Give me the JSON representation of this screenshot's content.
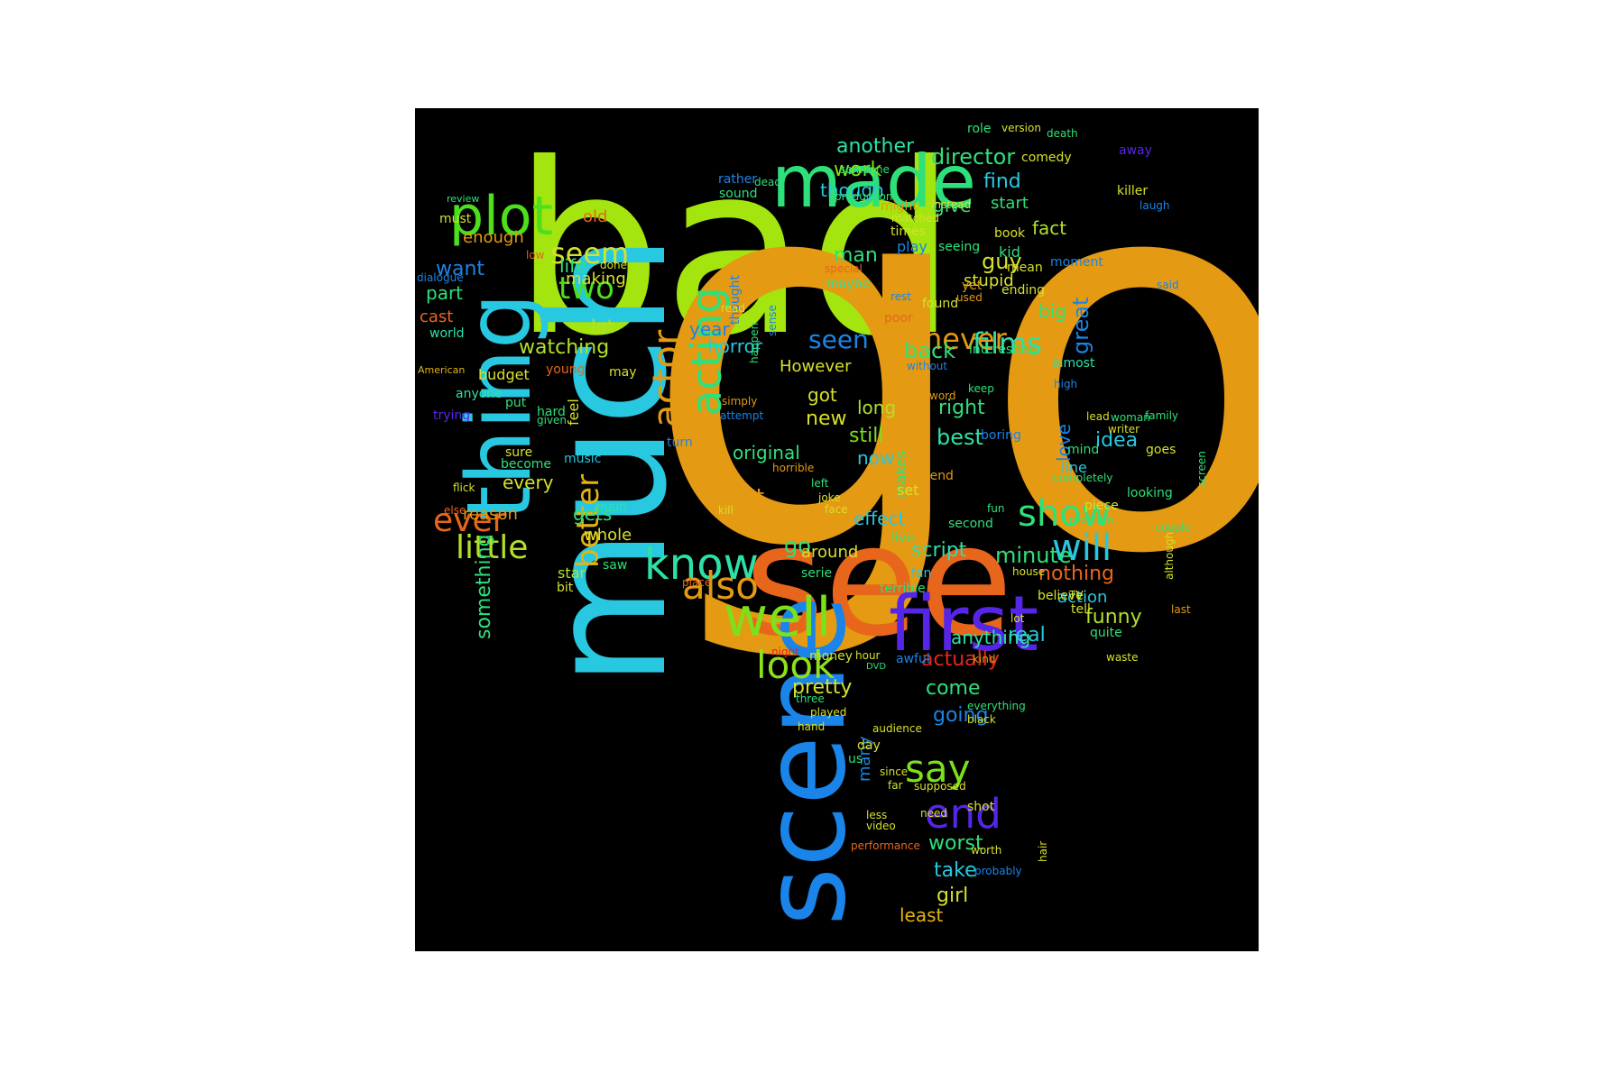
{
  "palette": {
    "background": "#000000",
    "page": "#ffffff"
  },
  "words": [
    {
      "text": "bad",
      "color": "#a4e40f"
    },
    {
      "text": "good",
      "color": "#e49a12"
    },
    {
      "text": "see",
      "color": "#e8661c"
    },
    {
      "text": "scene",
      "color": "#1a84e8"
    },
    {
      "text": "first",
      "color": "#5626e8"
    },
    {
      "text": "made",
      "color": "#2ee07a"
    },
    {
      "text": "much",
      "color": "#27c8e0"
    },
    {
      "text": "thing",
      "color": "#27c8e0"
    },
    {
      "text": "plot",
      "color": "#4ce01c"
    },
    {
      "text": "well",
      "color": "#7ce01a"
    },
    {
      "text": "know",
      "color": "#2ee0a8"
    },
    {
      "text": "also",
      "color": "#e49a12"
    },
    {
      "text": "look",
      "color": "#8ce01c"
    },
    {
      "text": "show",
      "color": "#2ee07a"
    },
    {
      "text": "will",
      "color": "#27c8e0"
    },
    {
      "text": "end",
      "color": "#5626e8"
    },
    {
      "text": "say",
      "color": "#7ce01a"
    },
    {
      "text": "acting",
      "color": "#2ee07a"
    },
    {
      "text": "actor",
      "color": "#e49a12"
    },
    {
      "text": "seem",
      "color": "#d6e02a"
    },
    {
      "text": "two",
      "color": "#4ce01c"
    },
    {
      "text": "ever",
      "color": "#e8661c"
    },
    {
      "text": "little",
      "color": "#b2e02a"
    },
    {
      "text": "better",
      "color": "#e4b412"
    },
    {
      "text": "films",
      "color": "#2ee0a8"
    },
    {
      "text": "never",
      "color": "#e49a12"
    },
    {
      "text": "seen",
      "color": "#1a84e8"
    },
    {
      "text": "director",
      "color": "#2ee07a"
    },
    {
      "text": "another",
      "color": "#2ee0a8"
    },
    {
      "text": "though",
      "color": "#27c8e0"
    },
    {
      "text": "work",
      "color": "#7ce01a"
    },
    {
      "text": "find",
      "color": "#27c8e0"
    },
    {
      "text": "give",
      "color": "#2ee07a"
    },
    {
      "text": "guy",
      "color": "#d6e02a"
    },
    {
      "text": "fact",
      "color": "#b2e02a"
    },
    {
      "text": "great",
      "color": "#1a84e8"
    },
    {
      "text": "big",
      "color": "#2ee07a"
    },
    {
      "text": "stupid",
      "color": "#d6e02a"
    },
    {
      "text": "man",
      "color": "#2ee07a"
    },
    {
      "text": "back",
      "color": "#2ee07a"
    },
    {
      "text": "horror",
      "color": "#27c8e0"
    },
    {
      "text": "year",
      "color": "#1a84e8"
    },
    {
      "text": "However",
      "color": "#d6e02a"
    },
    {
      "text": "long",
      "color": "#b2e02a"
    },
    {
      "text": "still",
      "color": "#7ce01a"
    },
    {
      "text": "now",
      "color": "#27c8e0"
    },
    {
      "text": "best",
      "color": "#2ee0a8"
    },
    {
      "text": "right",
      "color": "#2ee07a"
    },
    {
      "text": "love",
      "color": "#1a84e8"
    },
    {
      "text": "idea",
      "color": "#27c8e0"
    },
    {
      "text": "new",
      "color": "#d6e02a"
    },
    {
      "text": "got",
      "color": "#d6e02a"
    },
    {
      "text": "original",
      "color": "#2ee07a"
    },
    {
      "text": "point",
      "color": "#e49a12"
    },
    {
      "text": "effect",
      "color": "#27c8e0"
    },
    {
      "text": "script",
      "color": "#2ee0a8"
    },
    {
      "text": "minute",
      "color": "#2ee07a"
    },
    {
      "text": "nothing",
      "color": "#e8661c"
    },
    {
      "text": "action",
      "color": "#27c8e0"
    },
    {
      "text": "funny",
      "color": "#b2e02a"
    },
    {
      "text": "real",
      "color": "#27c8e0"
    },
    {
      "text": "anything",
      "color": "#2ee0a8"
    },
    {
      "text": "go",
      "color": "#2ee07a"
    },
    {
      "text": "around",
      "color": "#d6e02a"
    },
    {
      "text": "pretty",
      "color": "#d6e02a"
    },
    {
      "text": "actually",
      "color": "#e8261c"
    },
    {
      "text": "come",
      "color": "#2ee07a"
    },
    {
      "text": "going",
      "color": "#1a84e8"
    },
    {
      "text": "many",
      "color": "#1a84e8"
    },
    {
      "text": "worst",
      "color": "#2ee07a"
    },
    {
      "text": "take",
      "color": "#27c8e0"
    },
    {
      "text": "girl",
      "color": "#d6e02a"
    },
    {
      "text": "least",
      "color": "#e4b412"
    },
    {
      "text": "something",
      "color": "#2ee07a"
    },
    {
      "text": "watching",
      "color": "#b2e02a"
    },
    {
      "text": "want",
      "color": "#1a84e8"
    },
    {
      "text": "part",
      "color": "#2ee07a"
    },
    {
      "text": "old",
      "color": "#e8661c"
    },
    {
      "text": "life",
      "color": "#2ee07a"
    },
    {
      "text": "making",
      "color": "#d6e02a"
    },
    {
      "text": "lot",
      "color": "#b2e02a"
    },
    {
      "text": "every",
      "color": "#d6e02a"
    },
    {
      "text": "gets",
      "color": "#2ee07a"
    },
    {
      "text": "whole",
      "color": "#d6e02a"
    },
    {
      "text": "reason",
      "color": "#e49a12"
    },
    {
      "text": "enough",
      "color": "#e49a12"
    },
    {
      "text": "cast",
      "color": "#e8661c"
    },
    {
      "text": "budget",
      "color": "#d6e02a"
    },
    {
      "text": "star",
      "color": "#b2e02a"
    },
    {
      "text": "music",
      "color": "#27c8e0"
    },
    {
      "text": "feel",
      "color": "#d6e02a"
    },
    {
      "text": "world",
      "color": "#2ee0a8"
    },
    {
      "text": "trying",
      "color": "#5626e8"
    },
    {
      "text": "anyone",
      "color": "#2ee0a8"
    },
    {
      "text": "young",
      "color": "#e8661c"
    },
    {
      "text": "hard",
      "color": "#2ee07a"
    },
    {
      "text": "sure",
      "color": "#d6e02a"
    },
    {
      "text": "become",
      "color": "#2ee07a"
    },
    {
      "text": "done",
      "color": "#d6e02a"
    },
    {
      "text": "main",
      "color": "#2ee0a8"
    },
    {
      "text": "saw",
      "color": "#2ee07a"
    },
    {
      "text": "bit",
      "color": "#d6e02a"
    },
    {
      "text": "must",
      "color": "#d6e02a"
    },
    {
      "text": "low",
      "color": "#e8661c"
    },
    {
      "text": "dialogue",
      "color": "#1a84e8"
    },
    {
      "text": "put",
      "color": "#2ee07a"
    },
    {
      "text": "may",
      "color": "#d6e02a"
    },
    {
      "text": "review",
      "color": "#2ee07a"
    },
    {
      "text": "flick",
      "color": "#d6e02a"
    },
    {
      "text": "else",
      "color": "#e8661c"
    },
    {
      "text": "given",
      "color": "#2ee07a"
    },
    {
      "text": "American",
      "color": "#e4b412"
    },
    {
      "text": "role",
      "color": "#2ee07a"
    },
    {
      "text": "version",
      "color": "#d6e02a"
    },
    {
      "text": "death",
      "color": "#2ee07a"
    },
    {
      "text": "comedy",
      "color": "#d6e02a"
    },
    {
      "text": "away",
      "color": "#5626e8"
    },
    {
      "text": "start",
      "color": "#2ee07a"
    },
    {
      "text": "killer",
      "color": "#d6e02a"
    },
    {
      "text": "laugh",
      "color": "#1a84e8"
    },
    {
      "text": "instead",
      "color": "#d6e02a"
    },
    {
      "text": "might",
      "color": "#e49a12"
    },
    {
      "text": "matched",
      "color": "#d6e02a"
    },
    {
      "text": "times",
      "color": "#d6e02a"
    },
    {
      "text": "play",
      "color": "#1a84e8"
    },
    {
      "text": "seeing",
      "color": "#2ee07a"
    },
    {
      "text": "book",
      "color": "#d6e02a"
    },
    {
      "text": "kid",
      "color": "#2ee07a"
    },
    {
      "text": "moment",
      "color": "#1a84e8"
    },
    {
      "text": "mean",
      "color": "#d6e02a"
    },
    {
      "text": "ending",
      "color": "#d6e02a"
    },
    {
      "text": "yet",
      "color": "#e49a12"
    },
    {
      "text": "used",
      "color": "#e49a12"
    },
    {
      "text": "found",
      "color": "#d6e02a"
    },
    {
      "text": "rest",
      "color": "#1a84e8"
    },
    {
      "text": "poor",
      "color": "#e8661c"
    },
    {
      "text": "maybe",
      "color": "#2ee0a8"
    },
    {
      "text": "special",
      "color": "#e8661c"
    },
    {
      "text": "thought",
      "color": "#1a84e8"
    },
    {
      "text": "happen",
      "color": "#2ee07a"
    },
    {
      "text": "read",
      "color": "#d6e02a"
    },
    {
      "text": "sound",
      "color": "#2ee07a"
    },
    {
      "text": "rather",
      "color": "#1a84e8"
    },
    {
      "text": "dead",
      "color": "#2ee07a"
    },
    {
      "text": "production",
      "color": "#2ee07a"
    },
    {
      "text": "someone",
      "color": "#2ee07a"
    },
    {
      "text": "interesting",
      "color": "#2ee07a"
    },
    {
      "text": "almost",
      "color": "#2ee0a8"
    },
    {
      "text": "without",
      "color": "#1a84e8"
    },
    {
      "text": "word",
      "color": "#e49a12"
    },
    {
      "text": "keep",
      "color": "#2ee07a"
    },
    {
      "text": "high",
      "color": "#1a84e8"
    },
    {
      "text": "makes",
      "color": "#2ee07a"
    },
    {
      "text": "boring",
      "color": "#1a84e8"
    },
    {
      "text": "mind",
      "color": "#2ee07a"
    },
    {
      "text": "woman",
      "color": "#2ee07a"
    },
    {
      "text": "writer",
      "color": "#d6e02a"
    },
    {
      "text": "goes",
      "color": "#d6e02a"
    },
    {
      "text": "family",
      "color": "#2ee07a"
    },
    {
      "text": "lead",
      "color": "#d6e02a"
    },
    {
      "text": "line",
      "color": "#27c8e0"
    },
    {
      "text": "completely",
      "color": "#2ee07a"
    },
    {
      "text": "looking",
      "color": "#2ee07a"
    },
    {
      "text": "piece",
      "color": "#d6e02a"
    },
    {
      "text": "problem",
      "color": "#2ee07a"
    },
    {
      "text": "couple",
      "color": "#2ee07a"
    },
    {
      "text": "friend",
      "color": "#e49a12"
    },
    {
      "text": "joke",
      "color": "#d6e02a"
    },
    {
      "text": "face",
      "color": "#d6e02a"
    },
    {
      "text": "left",
      "color": "#2ee07a"
    },
    {
      "text": "horrible",
      "color": "#e49a12"
    },
    {
      "text": "turn",
      "color": "#1a84e8"
    },
    {
      "text": "attempt",
      "color": "#1a84e8"
    },
    {
      "text": "simply",
      "color": "#e49a12"
    },
    {
      "text": "kill",
      "color": "#d6e02a"
    },
    {
      "text": "set",
      "color": "#d6e02a"
    },
    {
      "text": "fun",
      "color": "#2ee07a"
    },
    {
      "text": "second",
      "color": "#2ee07a"
    },
    {
      "text": "live",
      "color": "#2ee07a"
    },
    {
      "text": "head",
      "color": "#e49a12"
    },
    {
      "text": "fan",
      "color": "#27c8e0"
    },
    {
      "text": "terrible",
      "color": "#2ee07a"
    },
    {
      "text": "serie",
      "color": "#2ee07a"
    },
    {
      "text": "house",
      "color": "#d6e02a"
    },
    {
      "text": "believe",
      "color": "#d6e02a"
    },
    {
      "text": "TV",
      "color": "#d6e02a"
    },
    {
      "text": "tell",
      "color": "#d6e02a"
    },
    {
      "text": "lot",
      "color": "#d6e02a"
    },
    {
      "text": "quite",
      "color": "#2ee07a"
    },
    {
      "text": "waste",
      "color": "#d6e02a"
    },
    {
      "text": "last",
      "color": "#e49a12"
    },
    {
      "text": "place",
      "color": "#e8661c"
    },
    {
      "text": "money",
      "color": "#d6e02a"
    },
    {
      "text": "hour",
      "color": "#d6e02a"
    },
    {
      "text": "awful",
      "color": "#1a84e8"
    },
    {
      "text": "kind",
      "color": "#e49a12"
    },
    {
      "text": "night",
      "color": "#e8261c"
    },
    {
      "text": "DVD",
      "color": "#2ee07a"
    },
    {
      "text": "three",
      "color": "#2ee07a"
    },
    {
      "text": "played",
      "color": "#d6e02a"
    },
    {
      "text": "hand",
      "color": "#d6e02a"
    },
    {
      "text": "audience",
      "color": "#d6e02a"
    },
    {
      "text": "day",
      "color": "#d6e02a"
    },
    {
      "text": "us",
      "color": "#2ee07a"
    },
    {
      "text": "since",
      "color": "#d6e02a"
    },
    {
      "text": "everything",
      "color": "#2ee07a"
    },
    {
      "text": "black",
      "color": "#d6e02a"
    },
    {
      "text": "far",
      "color": "#d6e02a"
    },
    {
      "text": "supposed",
      "color": "#d6e02a"
    },
    {
      "text": "shot",
      "color": "#d6e02a"
    },
    {
      "text": "need",
      "color": "#d6e02a"
    },
    {
      "text": "less",
      "color": "#d6e02a"
    },
    {
      "text": "video",
      "color": "#d6e02a"
    },
    {
      "text": "performance",
      "color": "#e8661c"
    },
    {
      "text": "worth",
      "color": "#d6e02a"
    },
    {
      "text": "hair",
      "color": "#d6e02a"
    },
    {
      "text": "probably",
      "color": "#1a84e8"
    },
    {
      "text": "although",
      "color": "#d6e02a"
    },
    {
      "text": "screen",
      "color": "#2ee07a"
    },
    {
      "text": "said",
      "color": "#1a84e8"
    },
    {
      "text": "sense",
      "color": "#1a84e8"
    }
  ]
}
